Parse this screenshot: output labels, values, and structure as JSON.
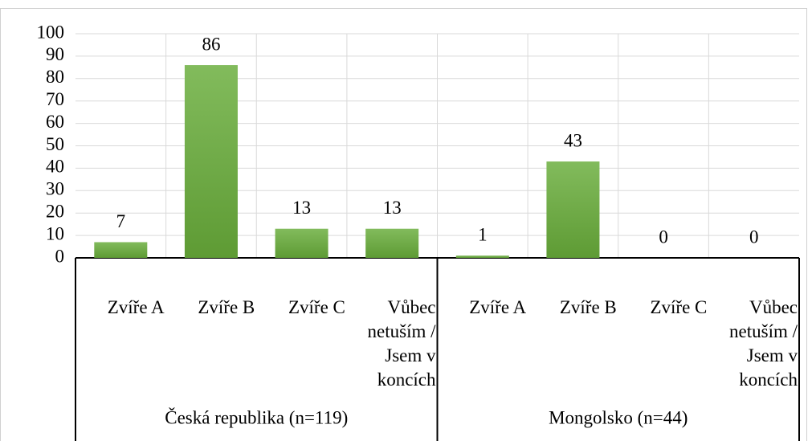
{
  "chart_data": {
    "type": "bar",
    "categories": [
      "Zvíře A",
      "Zvíře B",
      "Zvíře C",
      "Vůbec netuším / Jsem v koncích",
      "Zvíře A",
      "Zvíře B",
      "Zvíře C",
      "Vůbec netuším / Jsem v koncích"
    ],
    "groups": [
      "Česká republika (n=119)",
      "Mongolsko (n=44)"
    ],
    "values": [
      7,
      86,
      13,
      13,
      1,
      43,
      0,
      0
    ],
    "color": "#70ad47",
    "ylim": [
      0,
      100
    ],
    "yticks": [
      0,
      10,
      20,
      30,
      40,
      50,
      60,
      70,
      80,
      90,
      100
    ],
    "grid": true
  }
}
